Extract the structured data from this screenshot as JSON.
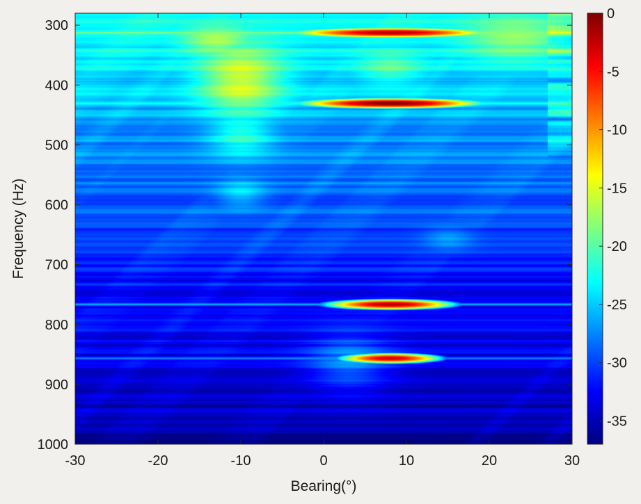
{
  "chart_data": {
    "type": "heatmap",
    "title": "",
    "xlabel": "Bearing(°)",
    "ylabel": "Frequency (Hz)",
    "xlim": [
      -30,
      30
    ],
    "ylim": [
      280,
      1000
    ],
    "y_reversed": true,
    "x_ticks": [
      -30,
      -20,
      -10,
      0,
      10,
      20,
      30
    ],
    "y_ticks": [
      300,
      400,
      500,
      600,
      700,
      800,
      900,
      1000
    ],
    "colorbar": {
      "colormap": "jet",
      "range": [
        -37,
        0
      ],
      "ticks": [
        0,
        -5,
        -10,
        -15,
        -20,
        -25,
        -30,
        -35
      ]
    },
    "background_level_by_frequency": [
      {
        "frequency": 280,
        "value": -23
      },
      {
        "frequency": 400,
        "value": -25
      },
      {
        "frequency": 500,
        "value": -27.5
      },
      {
        "frequency": 600,
        "value": -29
      },
      {
        "frequency": 700,
        "value": -31.5
      },
      {
        "frequency": 800,
        "value": -33
      },
      {
        "frequency": 900,
        "value": -34.5
      },
      {
        "frequency": 1000,
        "value": -36
      }
    ],
    "peaks": [
      {
        "bearing": 8,
        "frequency": 312,
        "value": -2,
        "bearing_halfwidth": 8
      },
      {
        "bearing": 8,
        "frequency": 430,
        "value": 0,
        "bearing_halfwidth": 7
      },
      {
        "bearing": 8,
        "frequency": 766,
        "value": -2,
        "bearing_halfwidth": 5
      },
      {
        "bearing": 8,
        "frequency": 856,
        "value": -3,
        "bearing_halfwidth": 4
      }
    ],
    "horizontal_lines": [
      {
        "frequency": 312,
        "value": -18
      },
      {
        "frequency": 430,
        "value": -22
      },
      {
        "frequency": 766,
        "value": -25
      },
      {
        "frequency": 856,
        "value": -27
      }
    ],
    "broad_features": [
      {
        "bearing": -10,
        "frequency": 390,
        "value": -15,
        "bearing_halfwidth": 5,
        "frequency_halfwidth": 60
      },
      {
        "bearing": -10,
        "frequency": 480,
        "value": -21,
        "bearing_halfwidth": 4,
        "frequency_halfwidth": 40
      },
      {
        "bearing": -10,
        "frequency": 580,
        "value": -24,
        "bearing_halfwidth": 3,
        "frequency_halfwidth": 25
      },
      {
        "bearing": 23,
        "frequency": 320,
        "value": -18,
        "bearing_halfwidth": 6,
        "frequency_halfwidth": 40
      },
      {
        "bearing": -13,
        "frequency": 325,
        "value": -17,
        "bearing_halfwidth": 4,
        "frequency_halfwidth": 25
      },
      {
        "bearing": 8,
        "frequency": 370,
        "value": -20,
        "bearing_halfwidth": 4,
        "frequency_halfwidth": 30
      },
      {
        "bearing": 3,
        "frequency": 860,
        "value": -28,
        "bearing_halfwidth": 5,
        "frequency_halfwidth": 50
      },
      {
        "bearing": 15,
        "frequency": 655,
        "value": -27,
        "bearing_halfwidth": 3,
        "frequency_halfwidth": 20
      }
    ]
  }
}
